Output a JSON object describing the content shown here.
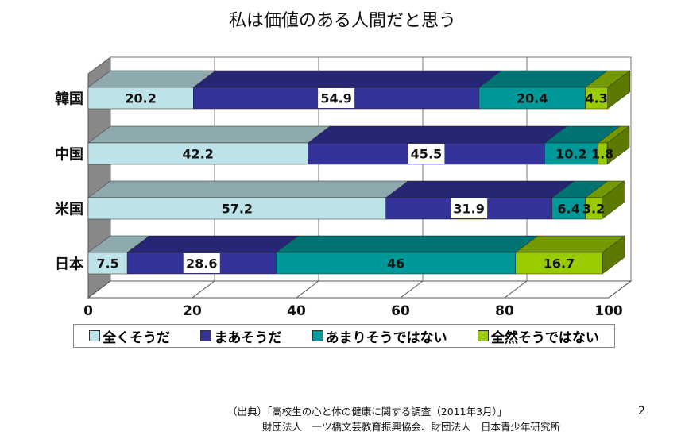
{
  "chart_data": {
    "type": "bar",
    "orientation": "horizontal-stacked-3d",
    "title": "私は価値のある人間だと思う",
    "categories": [
      "韓国",
      "中国",
      "米国",
      "日本"
    ],
    "series": [
      {
        "name": "全くそうだ",
        "color": "#bde3e8",
        "values": [
          20.2,
          42.2,
          57.2,
          7.5
        ],
        "labels": [
          "20.2",
          "42.2",
          "57.2",
          "7.5"
        ]
      },
      {
        "name": "まあそうだ",
        "color": "#33339a",
        "values": [
          54.9,
          45.5,
          31.9,
          28.6
        ],
        "labels": [
          "54.9",
          "45.5",
          "31.9",
          "28.6"
        ]
      },
      {
        "name": "あまりそうではない",
        "color": "#00999a",
        "values": [
          20.4,
          10.2,
          6.4,
          46
        ],
        "labels": [
          "20.4",
          "10.2",
          "6.4",
          "46"
        ]
      },
      {
        "name": "全然そうではない",
        "color": "#99cc00",
        "values": [
          4.3,
          1.8,
          3.2,
          16.7
        ],
        "labels": [
          "4.3",
          "1.8",
          "3.2",
          "16.7"
        ]
      }
    ],
    "xticks": [
      "0",
      "20",
      "40",
      "60",
      "80",
      "100"
    ],
    "xlim": [
      0,
      100
    ],
    "grid": true,
    "legend_position": "bottom"
  },
  "source": {
    "line1": "（出典）「高校生の心と体の健康に関する調査（2011年3月）」",
    "line2": "財団法人　一ツ橋文芸教育振興協会、財団法人　日本青少年研究所"
  },
  "page_number": "2"
}
